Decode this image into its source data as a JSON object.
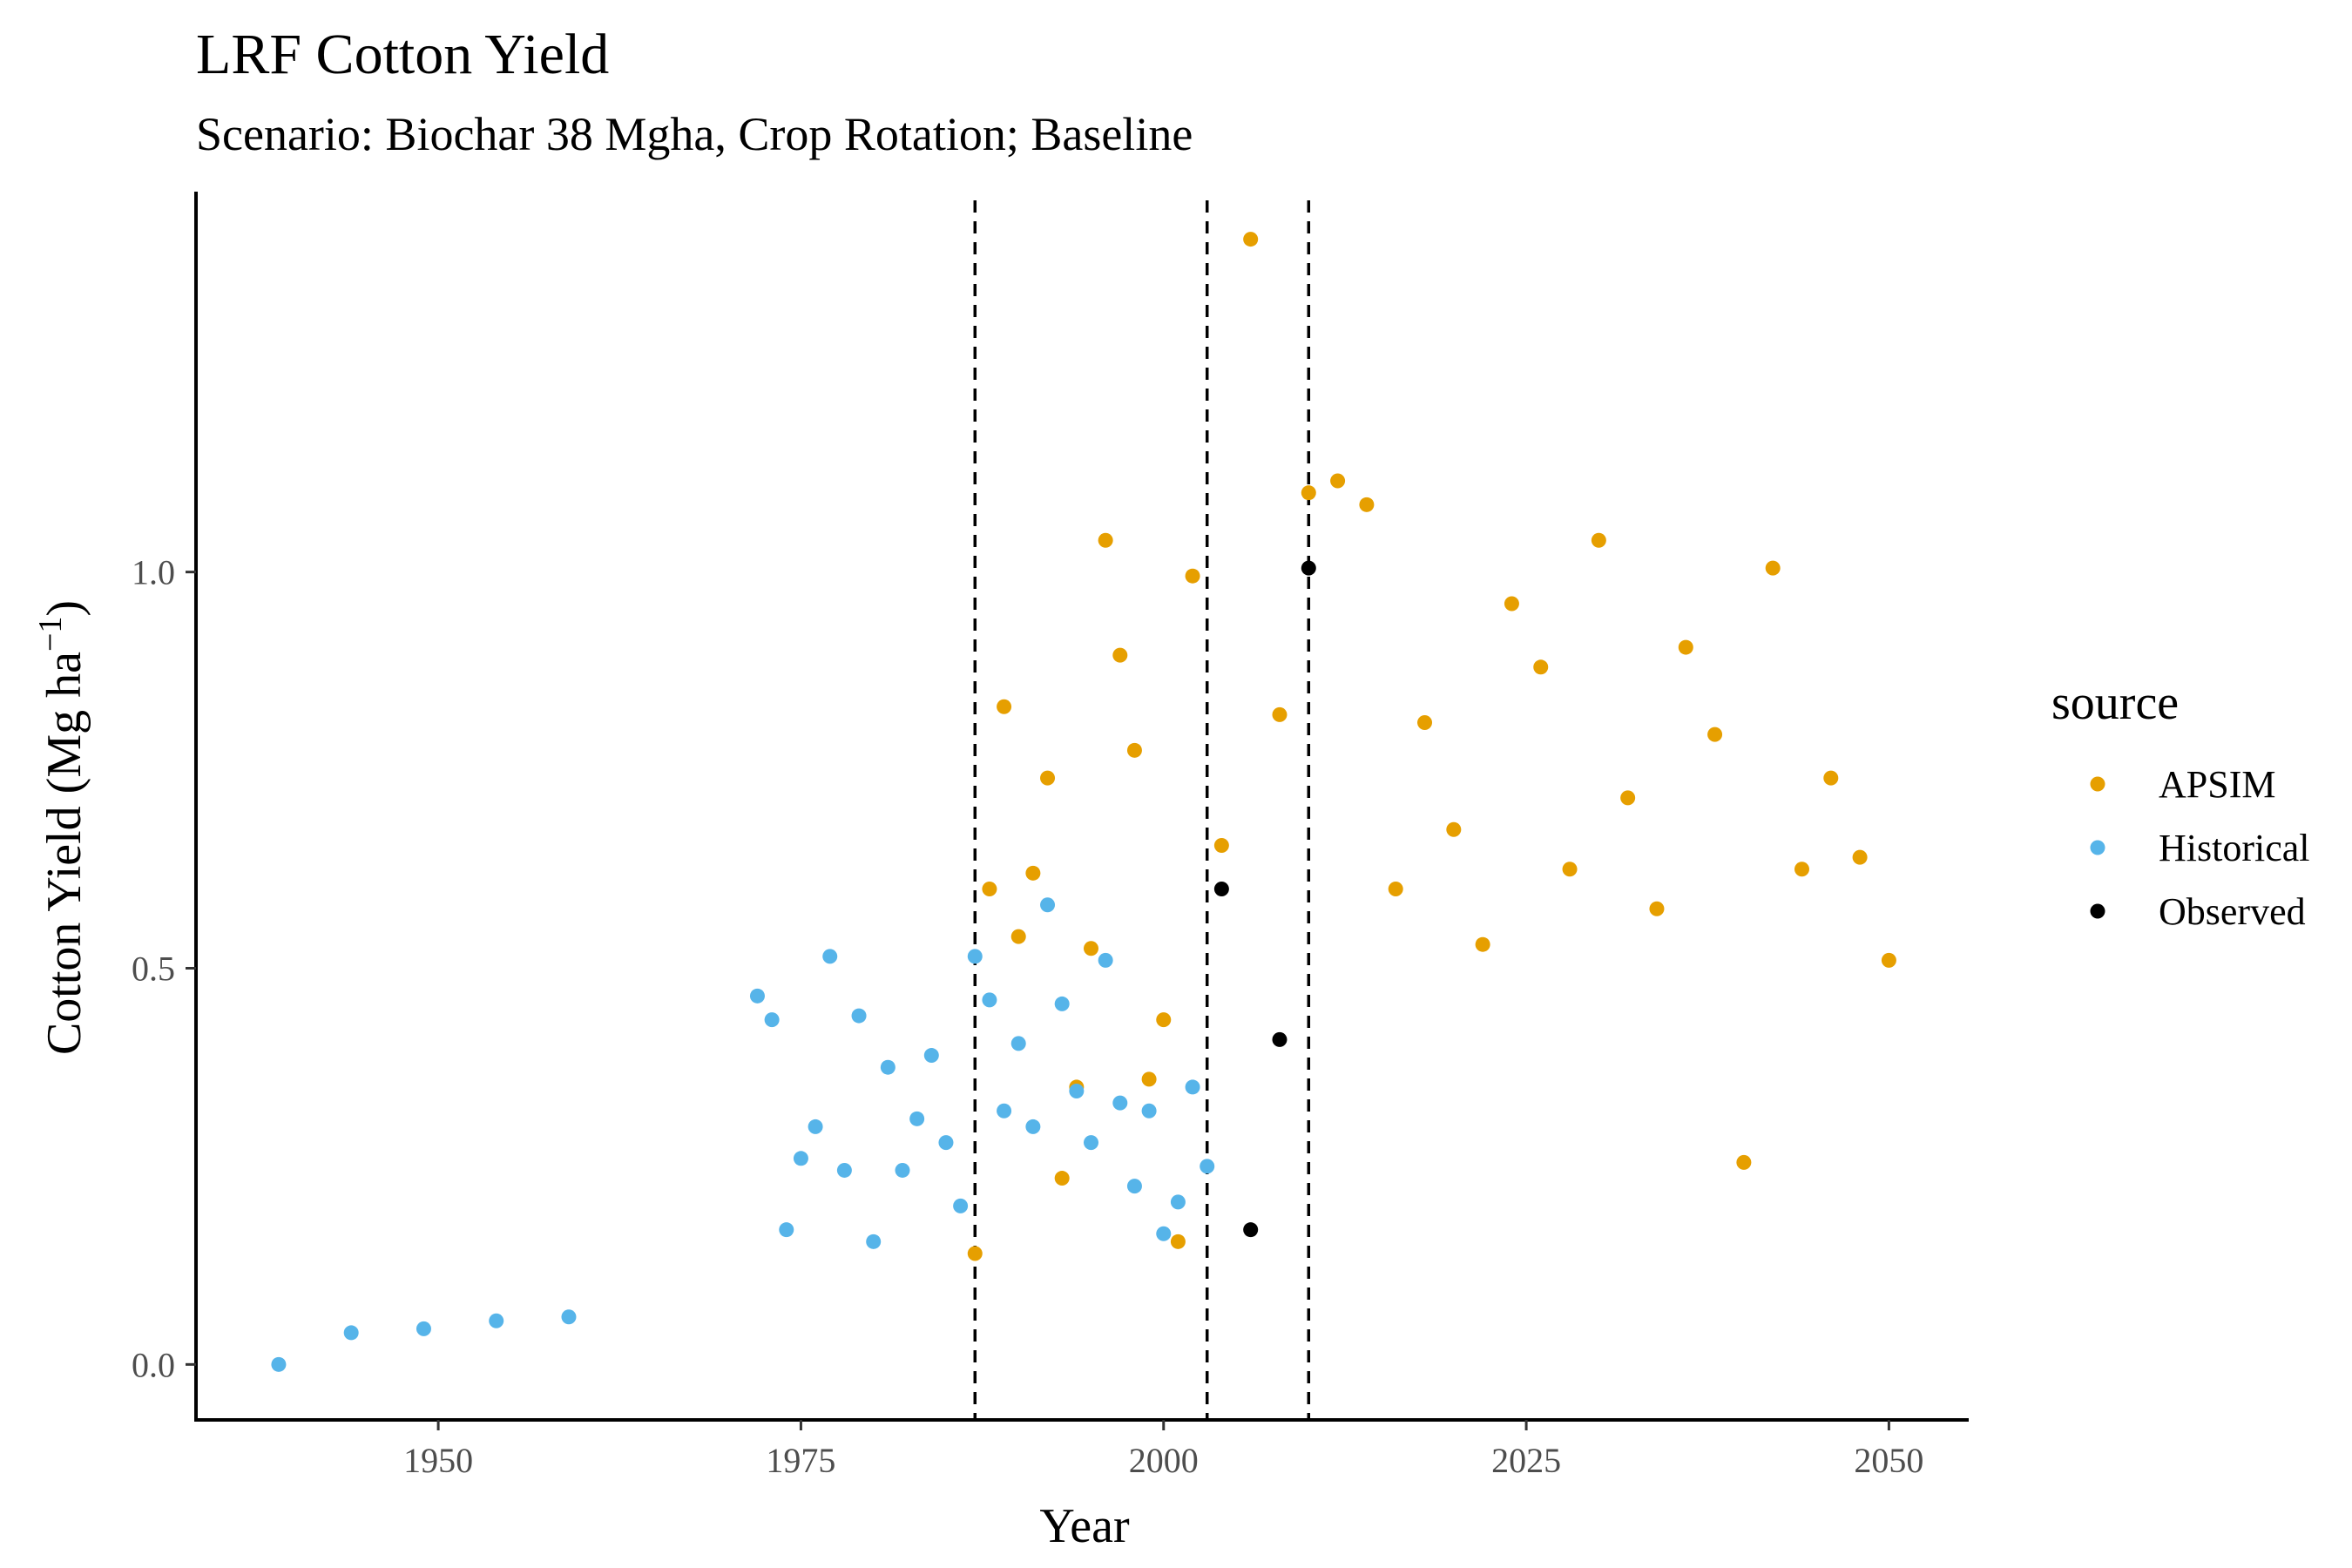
{
  "chart_data": {
    "type": "scatter",
    "title": "LRF Cotton Yield",
    "subtitle": "Scenario: Biochar 38 Mgha, Crop Rotation; Baseline",
    "xlabel": "Year",
    "ylabel_main": "Cotton Yield (Mg ha",
    "ylabel_sup": "−1",
    "ylabel_close": ")",
    "xlim": [
      1933.3,
      2055.5
    ],
    "ylim": [
      -0.07,
      1.48
    ],
    "x_ticks": [
      1950,
      1975,
      2000,
      2025,
      2050
    ],
    "x_tick_labels": [
      "1950",
      "1975",
      "2000",
      "2025",
      "2050"
    ],
    "y_ticks": [
      0.0,
      0.5,
      1.0
    ],
    "y_tick_labels": [
      "0.0",
      "0.5",
      "1.0"
    ],
    "vlines": [
      1987,
      2003,
      2010
    ],
    "grid": false,
    "legend": {
      "title": "source",
      "position": "right"
    },
    "series": [
      {
        "name": "APSIM",
        "color": "#E69F00",
        "points": [
          [
            1987,
            0.14
          ],
          [
            1988,
            0.6
          ],
          [
            1989,
            0.83
          ],
          [
            1990,
            0.54
          ],
          [
            1991,
            0.62
          ],
          [
            1992,
            0.74
          ],
          [
            1993,
            0.235
          ],
          [
            1994,
            0.35
          ],
          [
            1995,
            0.525
          ],
          [
            1996,
            1.04
          ],
          [
            1997,
            0.895
          ],
          [
            1998,
            0.775
          ],
          [
            1999,
            0.36
          ],
          [
            2000,
            0.435
          ],
          [
            2001,
            0.155
          ],
          [
            2002,
            0.995
          ],
          [
            2004,
            0.655
          ],
          [
            2006,
            1.42
          ],
          [
            2008,
            0.82
          ],
          [
            2010,
            1.1
          ],
          [
            2012,
            1.115
          ],
          [
            2014,
            1.085
          ],
          [
            2016,
            0.6
          ],
          [
            2018,
            0.81
          ],
          [
            2020,
            0.675
          ],
          [
            2022,
            0.53
          ],
          [
            2024,
            0.96
          ],
          [
            2026,
            0.88
          ],
          [
            2028,
            0.625
          ],
          [
            2030,
            1.04
          ],
          [
            2032,
            0.715
          ],
          [
            2034,
            0.575
          ],
          [
            2036,
            0.905
          ],
          [
            2038,
            0.795
          ],
          [
            2040,
            0.255
          ],
          [
            2042,
            1.005
          ],
          [
            2044,
            0.625
          ],
          [
            2046,
            0.74
          ],
          [
            2048,
            0.64
          ],
          [
            2050,
            0.51
          ]
        ]
      },
      {
        "name": "Historical",
        "color": "#56B4E9",
        "points": [
          [
            1939,
            0.0
          ],
          [
            1944,
            0.04
          ],
          [
            1949,
            0.045
          ],
          [
            1954,
            0.055
          ],
          [
            1959,
            0.06
          ],
          [
            1972,
            0.465
          ],
          [
            1973,
            0.435
          ],
          [
            1974,
            0.17
          ],
          [
            1975,
            0.26
          ],
          [
            1976,
            0.3
          ],
          [
            1977,
            0.515
          ],
          [
            1978,
            0.245
          ],
          [
            1979,
            0.44
          ],
          [
            1980,
            0.155
          ],
          [
            1981,
            0.375
          ],
          [
            1982,
            0.245
          ],
          [
            1983,
            0.31
          ],
          [
            1984,
            0.39
          ],
          [
            1985,
            0.28
          ],
          [
            1986,
            0.2
          ],
          [
            1987,
            0.515
          ],
          [
            1988,
            0.46
          ],
          [
            1989,
            0.32
          ],
          [
            1990,
            0.405
          ],
          [
            1991,
            0.3
          ],
          [
            1992,
            0.58
          ],
          [
            1993,
            0.455
          ],
          [
            1994,
            0.345
          ],
          [
            1995,
            0.28
          ],
          [
            1996,
            0.51
          ],
          [
            1997,
            0.33
          ],
          [
            1998,
            0.225
          ],
          [
            1999,
            0.32
          ],
          [
            2000,
            0.165
          ],
          [
            2001,
            0.205
          ],
          [
            2002,
            0.35
          ],
          [
            2003,
            0.25
          ]
        ]
      },
      {
        "name": "Observed",
        "color": "#000000",
        "points": [
          [
            2004,
            0.6
          ],
          [
            2006,
            0.17
          ],
          [
            2008,
            0.41
          ],
          [
            2010,
            1.005
          ]
        ]
      }
    ]
  }
}
